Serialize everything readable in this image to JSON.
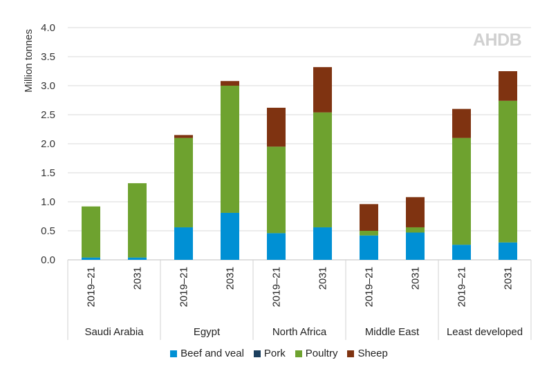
{
  "brand_logo": "AHDB",
  "chart_data": {
    "type": "bar",
    "stacked": true,
    "ylabel": "Million tonnes",
    "ylim": [
      0,
      4.0
    ],
    "yticks": [
      "0.0",
      "0.5",
      "1.0",
      "1.5",
      "2.0",
      "2.5",
      "3.0",
      "3.5",
      "4.0"
    ],
    "grid": true,
    "legend_position": "bottom",
    "groups": [
      "Saudi Arabia",
      "Egypt",
      "North Africa",
      "Middle East",
      "Least developed"
    ],
    "categories": [
      "2019–21",
      "2031",
      "2019–21",
      "2031",
      "2019–21",
      "2031",
      "2019–21",
      "2031",
      "2019–21",
      "2031"
    ],
    "series": [
      {
        "name": "Beef and veal",
        "color": "#0090d4",
        "values": [
          0.04,
          0.04,
          0.56,
          0.81,
          0.46,
          0.56,
          0.42,
          0.47,
          0.26,
          0.3
        ]
      },
      {
        "name": "Pork",
        "color": "#1c3f5e",
        "values": [
          0,
          0,
          0,
          0,
          0,
          0,
          0,
          0,
          0,
          0
        ]
      },
      {
        "name": "Poultry",
        "color": "#6ea22f",
        "values": [
          0.88,
          1.28,
          1.54,
          2.19,
          1.49,
          1.98,
          0.08,
          0.09,
          1.84,
          2.44
        ]
      },
      {
        "name": "Sheep",
        "color": "#7f3311",
        "values": [
          0,
          0,
          0.05,
          0.08,
          0.67,
          0.78,
          0.46,
          0.52,
          0.5,
          0.51
        ]
      }
    ]
  }
}
